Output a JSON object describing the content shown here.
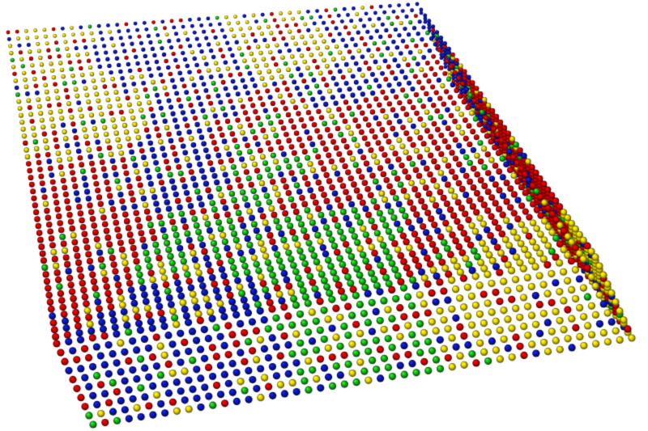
{
  "scene": {
    "background": "#ffffff",
    "subject": "3d-sphere-lattice-slab",
    "atom_colors": {
      "red": "#d40000",
      "blue": "#0a14b4",
      "yellow": "#e6d400",
      "green": "#14b414"
    },
    "species_mix": {
      "red": 0.38,
      "blue": 0.26,
      "yellow": 0.24,
      "green": 0.12
    },
    "lattice_cells": {
      "columns": 46,
      "rows": 46,
      "layers": 10
    }
  }
}
